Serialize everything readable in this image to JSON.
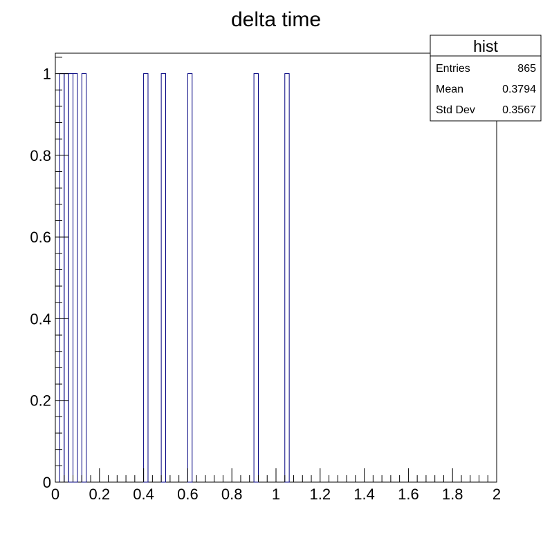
{
  "chart_data": {
    "type": "bar",
    "title": "delta time",
    "xlabel": "",
    "ylabel": "",
    "xlim": [
      0,
      2
    ],
    "ylim": [
      0,
      1.05
    ],
    "bin_width": 0.02,
    "x_ticks": [
      "0",
      "0.2",
      "0.4",
      "0.6",
      "0.8",
      "1",
      "1.2",
      "1.4",
      "1.6",
      "1.8",
      "2"
    ],
    "y_ticks": [
      "0",
      "0.2",
      "0.4",
      "0.6",
      "0.8",
      "1"
    ],
    "bins": [
      {
        "x": 0.02,
        "value": 1
      },
      {
        "x": 0.04,
        "value": 1
      },
      {
        "x": 0.06,
        "value": 1
      },
      {
        "x": 0.08,
        "value": 1
      },
      {
        "x": 0.12,
        "value": 1
      },
      {
        "x": 0.4,
        "value": 1
      },
      {
        "x": 0.48,
        "value": 1
      },
      {
        "x": 0.6,
        "value": 1
      },
      {
        "x": 0.9,
        "value": 1
      },
      {
        "x": 1.04,
        "value": 1
      }
    ],
    "line_color": "#000080"
  },
  "stats": {
    "title": "hist",
    "rows": [
      {
        "label": "Entries",
        "value": "865"
      },
      {
        "label": "Mean",
        "value": "0.3794"
      },
      {
        "label": "Std Dev",
        "value": "0.3567"
      }
    ]
  }
}
